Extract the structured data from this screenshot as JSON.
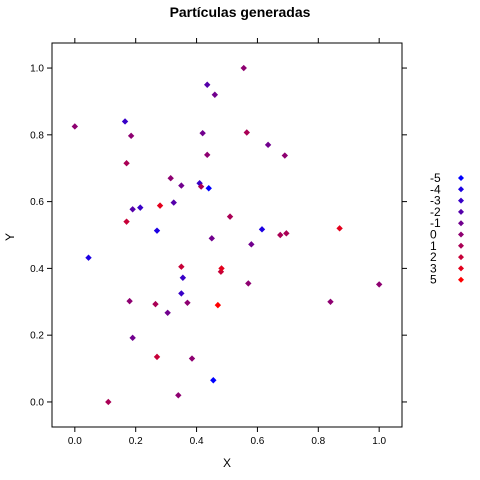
{
  "chart_data": {
    "type": "scatter",
    "title": "Partículas generadas",
    "xlabel": "X",
    "ylabel": "Y",
    "xlim": [
      -0.075,
      1.075
    ],
    "ylim": [
      -0.075,
      1.075
    ],
    "x_ticks": [
      0.0,
      0.2,
      0.4,
      0.6,
      0.8,
      1.0
    ],
    "x_tick_labels": [
      "0.0",
      "0.2",
      "0.4",
      "0.6",
      "0.8",
      "1.0"
    ],
    "y_ticks": [
      0.0,
      0.2,
      0.4,
      0.6,
      0.8,
      1.0
    ],
    "y_tick_labels": [
      "0.0",
      "0.2",
      "0.4",
      "0.6",
      "0.8",
      "1.0"
    ],
    "grid": false,
    "legend_position": "right",
    "legend": [
      {
        "label": "-5",
        "color": "#0000ff"
      },
      {
        "label": "-4",
        "color": "#1c00e3"
      },
      {
        "label": "-3",
        "color": "#3800c7"
      },
      {
        "label": "-2",
        "color": "#5500aa"
      },
      {
        "label": "-1",
        "color": "#71008e"
      },
      {
        "label": "0",
        "color": "#8e0071"
      },
      {
        "label": "1",
        "color": "#aa0055"
      },
      {
        "label": "2",
        "color": "#c70038"
      },
      {
        "label": "3",
        "color": "#e3001c"
      },
      {
        "label": "5",
        "color": "#ff0000"
      }
    ],
    "points": [
      {
        "x": 0.0,
        "y": 0.825,
        "group": 0
      },
      {
        "x": 0.045,
        "y": 0.432,
        "group": -4
      },
      {
        "x": 0.11,
        "y": 0.0,
        "group": 1
      },
      {
        "x": 0.165,
        "y": 0.84,
        "group": -3
      },
      {
        "x": 0.17,
        "y": 0.715,
        "group": 1
      },
      {
        "x": 0.17,
        "y": 0.54,
        "group": 2
      },
      {
        "x": 0.18,
        "y": 0.302,
        "group": 0
      },
      {
        "x": 0.185,
        "y": 0.797,
        "group": 0
      },
      {
        "x": 0.19,
        "y": 0.577,
        "group": -2
      },
      {
        "x": 0.19,
        "y": 0.192,
        "group": -1
      },
      {
        "x": 0.215,
        "y": 0.582,
        "group": -3
      },
      {
        "x": 0.265,
        "y": 0.293,
        "group": 1
      },
      {
        "x": 0.27,
        "y": 0.513,
        "group": -4
      },
      {
        "x": 0.27,
        "y": 0.135,
        "group": 2
      },
      {
        "x": 0.28,
        "y": 0.588,
        "group": 3
      },
      {
        "x": 0.305,
        "y": 0.267,
        "group": -1
      },
      {
        "x": 0.315,
        "y": 0.67,
        "group": 0
      },
      {
        "x": 0.325,
        "y": 0.597,
        "group": -2
      },
      {
        "x": 0.34,
        "y": 0.02,
        "group": 0
      },
      {
        "x": 0.35,
        "y": 0.648,
        "group": -1
      },
      {
        "x": 0.35,
        "y": 0.405,
        "group": 2
      },
      {
        "x": 0.35,
        "y": 0.325,
        "group": -3
      },
      {
        "x": 0.355,
        "y": 0.372,
        "group": -3
      },
      {
        "x": 0.37,
        "y": 0.297,
        "group": 0
      },
      {
        "x": 0.385,
        "y": 0.13,
        "group": 0
      },
      {
        "x": 0.41,
        "y": 0.655,
        "group": -3
      },
      {
        "x": 0.415,
        "y": 0.645,
        "group": 1
      },
      {
        "x": 0.42,
        "y": 0.805,
        "group": -1
      },
      {
        "x": 0.435,
        "y": 0.95,
        "group": -2
      },
      {
        "x": 0.435,
        "y": 0.74,
        "group": 0
      },
      {
        "x": 0.44,
        "y": 0.64,
        "group": -5
      },
      {
        "x": 0.45,
        "y": 0.49,
        "group": -1
      },
      {
        "x": 0.455,
        "y": 0.065,
        "group": -5
      },
      {
        "x": 0.46,
        "y": 0.92,
        "group": -1
      },
      {
        "x": 0.47,
        "y": 0.29,
        "group": 5
      },
      {
        "x": 0.48,
        "y": 0.39,
        "group": 2
      },
      {
        "x": 0.482,
        "y": 0.4,
        "group": 3
      },
      {
        "x": 0.51,
        "y": 0.555,
        "group": 1
      },
      {
        "x": 0.555,
        "y": 1.0,
        "group": 0
      },
      {
        "x": 0.565,
        "y": 0.807,
        "group": 1
      },
      {
        "x": 0.57,
        "y": 0.355,
        "group": 0
      },
      {
        "x": 0.58,
        "y": 0.472,
        "group": -1
      },
      {
        "x": 0.615,
        "y": 0.517,
        "group": -4
      },
      {
        "x": 0.635,
        "y": 0.77,
        "group": -1
      },
      {
        "x": 0.675,
        "y": 0.5,
        "group": 1
      },
      {
        "x": 0.69,
        "y": 0.738,
        "group": 0
      },
      {
        "x": 0.695,
        "y": 0.505,
        "group": 1
      },
      {
        "x": 0.84,
        "y": 0.3,
        "group": 0
      },
      {
        "x": 0.87,
        "y": 0.52,
        "group": 3
      },
      {
        "x": 1.0,
        "y": 0.352,
        "group": 0
      }
    ]
  }
}
